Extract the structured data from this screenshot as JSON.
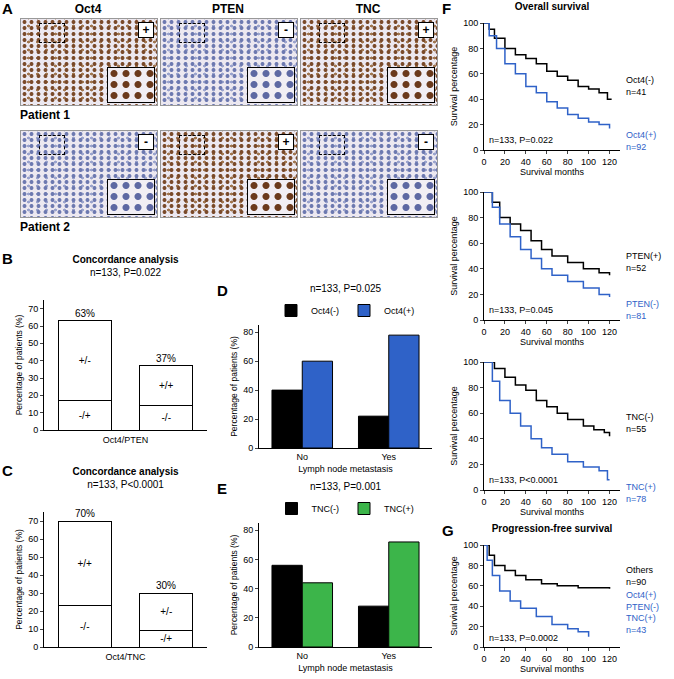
{
  "panel_a": {
    "label": "A",
    "columns": [
      "Oct4",
      "PTEN",
      "TNC"
    ],
    "rows": [
      {
        "label": "Patient 1",
        "signs": [
          "+",
          "-",
          "+"
        ]
      },
      {
        "label": "Patient 2",
        "signs": [
          "-",
          "+",
          "-"
        ]
      }
    ]
  },
  "chart_data": [
    {
      "label": "B",
      "type": "bar",
      "stacked": true,
      "title": "Concordance analysis",
      "subtitle": "n=133, P=0.022",
      "x_label": "Oct4/PTEN",
      "y_label": "Percentage of patients (%)",
      "categories": [
        null,
        null
      ],
      "series": [
        {
          "values": [
            17,
            14
          ],
          "segment_labels": [
            "-/+",
            "-/-"
          ],
          "color": "#ffffff"
        },
        {
          "values": [
            46,
            23
          ],
          "segment_labels": [
            "+/-",
            "+/+"
          ],
          "color": "#ffffff"
        }
      ],
      "totals": [
        63,
        37
      ],
      "total_labels": [
        "63%",
        "37%"
      ],
      "ylim": [
        0,
        75
      ],
      "yticks": [
        0,
        10,
        20,
        30,
        40,
        50,
        60,
        70
      ],
      "grid": false
    },
    {
      "label": "C",
      "type": "bar",
      "stacked": true,
      "title": "Concordance analysis",
      "subtitle": "n=133, P<0.0001",
      "x_label": "Oct4/TNC",
      "y_label": "Percentage of patients (%)",
      "categories": [
        null,
        null
      ],
      "series": [
        {
          "values": [
            23,
            9
          ],
          "segment_labels": [
            "-/-",
            "-/+"
          ],
          "color": "#ffffff"
        },
        {
          "values": [
            47,
            21
          ],
          "segment_labels": [
            "+/+",
            "+/-"
          ],
          "color": "#ffffff"
        }
      ],
      "totals": [
        70,
        30
      ],
      "total_labels": [
        "70%",
        "30%"
      ],
      "ylim": [
        0,
        75
      ],
      "yticks": [
        0,
        10,
        20,
        30,
        40,
        50,
        60,
        70
      ],
      "grid": false
    },
    {
      "label": "D",
      "type": "bar",
      "subtitle": "n=133, P=0.025",
      "legend": "top",
      "x_label": "Lymph node metastasis",
      "y_label": "Percentage of patients (%)",
      "categories": [
        "No",
        "Yes"
      ],
      "series": [
        {
          "name": "Oct4(-)",
          "color": "#000000",
          "values": [
            40,
            22
          ]
        },
        {
          "name": "Oct4(+)",
          "color": "#2f62c8",
          "values": [
            60,
            78
          ]
        }
      ],
      "ylim": [
        0,
        85
      ],
      "yticks": [
        0,
        20,
        40,
        60,
        80
      ],
      "grid": false
    },
    {
      "label": "E",
      "type": "bar",
      "subtitle": "n=133, P=0.001",
      "legend": "top",
      "x_label": "Lymph node metastasis",
      "y_label": "Percentage of patients (%)",
      "categories": [
        "No",
        "Yes"
      ],
      "series": [
        {
          "name": "TNC(-)",
          "color": "#000000",
          "values": [
            56,
            28
          ]
        },
        {
          "name": "TNC(+)",
          "color": "#3cb54a",
          "values": [
            44,
            72
          ]
        }
      ],
      "ylim": [
        0,
        85
      ],
      "yticks": [
        0,
        20,
        40,
        60,
        80
      ],
      "grid": false
    },
    {
      "label": "F",
      "type": "line",
      "line_style": "step",
      "title": "Overall survival",
      "annotation": "n=133, P=0.022",
      "x_label": "Survival months",
      "y_label": "Survival percentage",
      "xlim": [
        0,
        130
      ],
      "xticks": [
        0,
        20,
        40,
        60,
        80,
        100,
        120
      ],
      "ylim": [
        0,
        100
      ],
      "yticks": [
        0,
        20,
        40,
        60,
        80,
        100
      ],
      "grid": false,
      "series": [
        {
          "name": "Oct4(-)",
          "n_label": "n=41",
          "color": "#000000",
          "x": [
            0,
            5,
            10,
            20,
            30,
            40,
            50,
            60,
            70,
            80,
            90,
            100,
            110,
            118,
            122
          ],
          "values": [
            100,
            95,
            88,
            80,
            75,
            72,
            68,
            62,
            58,
            55,
            50,
            48,
            45,
            40,
            40
          ]
        },
        {
          "name": "Oct4(+)",
          "n_label": "n=92",
          "color": "#2f62c8",
          "x": [
            0,
            5,
            12,
            20,
            30,
            40,
            50,
            60,
            70,
            80,
            90,
            100,
            110,
            120
          ],
          "values": [
            100,
            90,
            80,
            68,
            60,
            50,
            45,
            38,
            33,
            28,
            25,
            22,
            20,
            17
          ]
        }
      ]
    },
    {
      "type": "line",
      "line_style": "step",
      "annotation": "n=133, P=0.045",
      "x_label": "Survival months",
      "y_label": "Survival percentage",
      "xlim": [
        0,
        130
      ],
      "xticks": [
        0,
        20,
        40,
        60,
        80,
        100,
        120
      ],
      "ylim": [
        0,
        100
      ],
      "yticks": [
        0,
        20,
        40,
        60,
        80,
        100
      ],
      "grid": false,
      "series": [
        {
          "name": "PTEN(+)",
          "n_label": "n=52",
          "color": "#000000",
          "x": [
            0,
            8,
            15,
            25,
            35,
            45,
            55,
            65,
            80,
            95,
            110,
            120
          ],
          "values": [
            100,
            92,
            80,
            75,
            70,
            62,
            55,
            50,
            45,
            40,
            37,
            35
          ]
        },
        {
          "name": "PTEN(-)",
          "n_label": "n=81",
          "color": "#2f62c8",
          "x": [
            0,
            8,
            15,
            25,
            35,
            45,
            55,
            65,
            80,
            95,
            110,
            120
          ],
          "values": [
            100,
            88,
            75,
            65,
            55,
            48,
            40,
            35,
            30,
            25,
            20,
            18
          ]
        }
      ]
    },
    {
      "type": "line",
      "line_style": "step",
      "annotation": "n=133, P<0.0001",
      "x_label": "Survival months",
      "y_label": "Survival percentage",
      "xlim": [
        0,
        130
      ],
      "xticks": [
        0,
        20,
        40,
        60,
        80,
        100,
        120
      ],
      "ylim": [
        0,
        100
      ],
      "yticks": [
        0,
        20,
        40,
        60,
        80,
        100
      ],
      "grid": false,
      "series": [
        {
          "name": "TNC(-)",
          "n_label": "n=55",
          "color": "#000000",
          "x": [
            0,
            10,
            20,
            30,
            40,
            50,
            60,
            70,
            80,
            95,
            105,
            115,
            120
          ],
          "values": [
            100,
            95,
            88,
            82,
            78,
            70,
            65,
            60,
            55,
            50,
            47,
            45,
            42
          ]
        },
        {
          "name": "TNC(+)",
          "n_label": "n=78",
          "color": "#2f62c8",
          "x": [
            0,
            8,
            15,
            25,
            35,
            45,
            55,
            65,
            80,
            95,
            110,
            118,
            120
          ],
          "values": [
            100,
            85,
            70,
            60,
            50,
            40,
            33,
            28,
            22,
            18,
            15,
            8,
            8
          ]
        }
      ]
    },
    {
      "label": "G",
      "type": "line",
      "line_style": "step",
      "title": "Progression-free survival",
      "annotation": "n=133, P=0.0002",
      "x_label": "Survival months",
      "y_label": "Survival percentage",
      "xlim": [
        0,
        130
      ],
      "xticks": [
        0,
        20,
        40,
        60,
        80,
        100,
        120
      ],
      "ylim": [
        0,
        100
      ],
      "yticks": [
        0,
        20,
        40,
        60,
        80,
        100
      ],
      "grid": false,
      "series": [
        {
          "name": "Others",
          "n_label": "n=90",
          "color": "#000000",
          "x": [
            0,
            5,
            10,
            20,
            30,
            40,
            55,
            70,
            90,
            120
          ],
          "values": [
            100,
            90,
            80,
            75,
            70,
            66,
            62,
            60,
            58,
            57
          ]
        },
        {
          "name": "Oct4(+) PTEN(-) TNC(+)",
          "n_label": "n=43",
          "color": "#2f62c8",
          "x": [
            0,
            3,
            8,
            15,
            25,
            35,
            50,
            65,
            80,
            90,
            100
          ],
          "values": [
            100,
            85,
            70,
            55,
            45,
            38,
            30,
            22,
            18,
            15,
            10
          ]
        }
      ]
    }
  ]
}
